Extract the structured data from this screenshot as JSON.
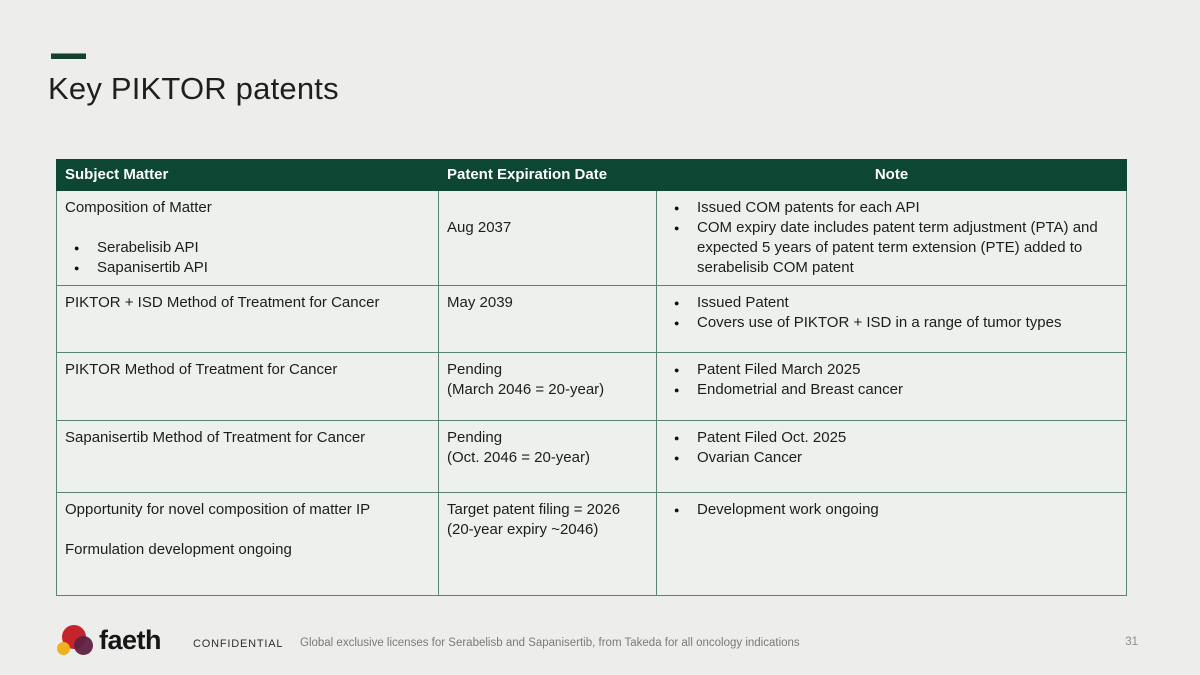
{
  "slide": {
    "title": "Key PIKTOR patents",
    "page_number": "31"
  },
  "colors": {
    "header_green": "#0d4632",
    "accent_dash_green": "#14402e",
    "table_border_green": "#5b8471",
    "background": "#edeeec",
    "logo_red": "#c5242b",
    "logo_yellow": "#efb11c",
    "logo_maroon": "#5f2142"
  },
  "table": {
    "headers": [
      "Subject Matter",
      "Patent Expiration Date",
      "Note"
    ],
    "rows": [
      {
        "subject": {
          "paragraphs": [
            [
              "Composition of Matter"
            ]
          ],
          "bullets": [
            "Serabelisib API",
            "Sapanisertib API"
          ]
        },
        "expiration": {
          "paragraphs": [
            [
              "",
              "Aug 2037"
            ]
          ]
        },
        "note": {
          "bullets": [
            "Issued COM patents for each API",
            "COM expiry date includes patent term adjustment (PTA) and expected 5 years of patent term extension (PTE) added to serabelisib COM patent"
          ]
        }
      },
      {
        "subject": {
          "paragraphs": [
            [
              "PIKTOR + ISD Method of Treatment for Cancer"
            ]
          ]
        },
        "expiration": {
          "paragraphs": [
            [
              "May 2039"
            ]
          ]
        },
        "note": {
          "bullets": [
            "Issued Patent",
            "Covers use of PIKTOR + ISD in a range of tumor types"
          ]
        }
      },
      {
        "subject": {
          "paragraphs": [
            [
              "PIKTOR Method of Treatment for Cancer"
            ]
          ]
        },
        "expiration": {
          "paragraphs": [
            [
              "Pending",
              "(March 2046 = 20-year)"
            ]
          ]
        },
        "note": {
          "bullets": [
            "Patent Filed March 2025",
            "Endometrial and Breast cancer"
          ]
        }
      },
      {
        "subject": {
          "paragraphs": [
            [
              "Sapanisertib Method of Treatment for Cancer"
            ]
          ]
        },
        "expiration": {
          "paragraphs": [
            [
              "Pending",
              "(Oct. 2046 = 20-year)"
            ]
          ]
        },
        "note": {
          "bullets": [
            "Patent Filed Oct. 2025",
            "Ovarian Cancer"
          ]
        }
      },
      {
        "subject": {
          "paragraphs": [
            [
              "Opportunity for novel composition of matter IP"
            ],
            [
              "Formulation development ongoing"
            ]
          ]
        },
        "expiration": {
          "paragraphs": [
            [
              "Target patent filing = 2026",
              "(20-year expiry ~2046)"
            ]
          ]
        },
        "note": {
          "bullets": [
            "Development work ongoing"
          ]
        }
      }
    ]
  },
  "footer": {
    "logo_text": "faeth",
    "confidential_label": "CONFIDENTIAL",
    "description": "Global exclusive licenses for Serabelisb and Sapanisertib, from Takeda for all oncology indications"
  }
}
